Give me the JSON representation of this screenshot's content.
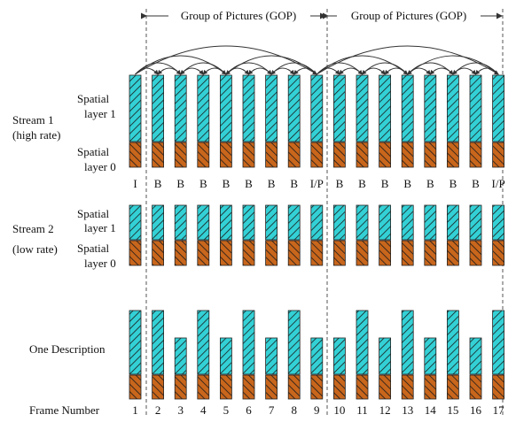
{
  "gop_labels": [
    "Group of Pictures (GOP)",
    "Group of Pictures (GOP)"
  ],
  "stream1": {
    "label_lines": [
      "Stream 1",
      "(high rate)"
    ],
    "layer1_lines": [
      "Spatial",
      "layer 1"
    ],
    "layer0_lines": [
      "Spatial",
      "layer 0"
    ],
    "frame_types": [
      "I",
      "B",
      "B",
      "B",
      "B",
      "B",
      "B",
      "B",
      "I/P",
      "B",
      "B",
      "B",
      "B",
      "B",
      "B",
      "B",
      "I/P"
    ]
  },
  "stream2": {
    "label_lines": [
      "Stream 2",
      "(low rate)"
    ],
    "layer1_lines": [
      "Spatial",
      "layer 1"
    ],
    "layer0_lines": [
      "Spatial",
      "layer 0"
    ]
  },
  "one_description": {
    "label": "One Description",
    "enhancement_present": [
      true,
      true,
      false,
      true,
      false,
      true,
      false,
      true,
      false,
      false,
      true,
      false,
      true,
      false,
      true,
      false,
      true
    ]
  },
  "frame_number_label": "Frame Number",
  "frame_numbers": [
    "1",
    "2",
    "3",
    "4",
    "5",
    "6",
    "7",
    "8",
    "9",
    "10",
    "11",
    "12",
    "13",
    "14",
    "15",
    "16",
    "17"
  ],
  "colors": {
    "spatial_layer_1": "#33d1d6",
    "spatial_layer_0": "#c8661c",
    "hatch": "#1a1a1a",
    "lines": "#333333"
  }
}
